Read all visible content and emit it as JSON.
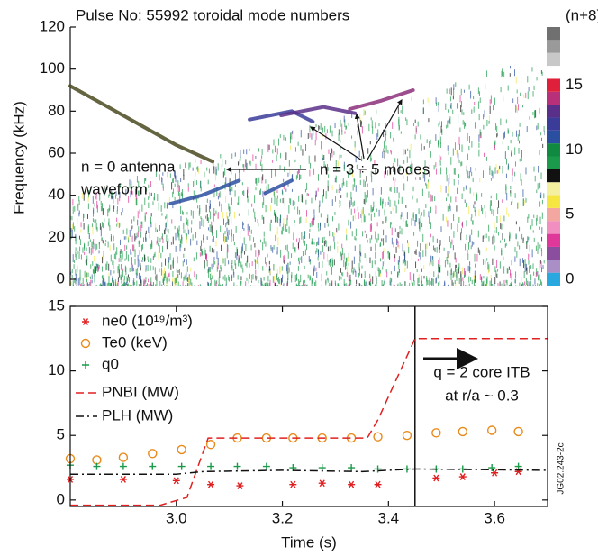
{
  "chart_data": [
    {
      "type": "spectrogram",
      "title": "Pulse No: 55992 toroidal mode numbers",
      "ylabel": "Frequency (kHz)",
      "xlim": [
        2.8,
        3.7
      ],
      "ylim": [
        -3,
        120
      ],
      "yticks": [
        0,
        20,
        40,
        60,
        80,
        100,
        120
      ],
      "colorbar": {
        "label": "(n+8)",
        "ticks": [
          0,
          5,
          10,
          15
        ],
        "colors": [
          "#29a8e0",
          "#a98fc6",
          "#8b4e9e",
          "#e0379a",
          "#f08fc0",
          "#f4a6a0",
          "#f5e642",
          "#f5f0a0",
          "#111111",
          "#1a9a4a",
          "#0f8a40",
          "#2a4fa0",
          "#3b3b9a",
          "#5a2f8a",
          "#b8307a",
          "#e0203a",
          "#ffffff",
          "#c8c8c8",
          "#9a9a9a",
          "#707070"
        ]
      },
      "traces": [
        {
          "color": "#4a4a20",
          "x": [
            2.8,
            2.9,
            3.0,
            3.07
          ],
          "y": [
            92,
            78,
            64,
            56
          ]
        },
        {
          "color": "#3b3b9a",
          "x": [
            3.14,
            3.18,
            3.22,
            3.26
          ],
          "y": [
            76,
            78,
            80,
            75
          ]
        },
        {
          "color": "#5a2f8a",
          "x": [
            3.2,
            3.28,
            3.34
          ],
          "y": [
            78,
            82,
            79
          ]
        },
        {
          "color": "#8b2f7a",
          "x": [
            3.33,
            3.39,
            3.45
          ],
          "y": [
            81,
            85,
            90
          ]
        },
        {
          "color": "#2a4fa0",
          "x": [
            2.99,
            3.05,
            3.12
          ],
          "y": [
            36,
            40,
            47
          ]
        },
        {
          "color": "#2a4fa0",
          "x": [
            3.17,
            3.22
          ],
          "y": [
            41,
            47
          ]
        }
      ],
      "annotations": [
        "n = 0 antenna",
        "waveform",
        "n = 3 ÷ 5 modes"
      ]
    },
    {
      "type": "line",
      "xlabel": "Time (s)",
      "xlim": [
        2.8,
        3.7
      ],
      "xticks": [
        {
          "value": 3,
          "label": "3.0"
        },
        3.2,
        3.4,
        3.6
      ],
      "ylim": [
        -0.5,
        15
      ],
      "yticks": [
        0,
        5,
        10,
        15
      ],
      "vline": 3.45,
      "annotations": [
        "q = 2 core ITB",
        "at r/a ~ 0.3"
      ],
      "note": "JG02.243-2c",
      "series": [
        {
          "name": "ne0 (10¹⁹/m³)",
          "color": "#e02020",
          "marker": "asterisk",
          "x": [
            2.8,
            2.9,
            3.0,
            3.065,
            3.12,
            3.22,
            3.275,
            3.33,
            3.38,
            3.49,
            3.54,
            3.6,
            3.645
          ],
          "values": [
            1.6,
            1.6,
            1.5,
            1.2,
            1.1,
            1.2,
            1.3,
            1.2,
            1.2,
            1.7,
            1.8,
            2.1,
            2.2
          ]
        },
        {
          "name": "Te0 (keV)",
          "color": "#e88a1a",
          "marker": "circle",
          "x": [
            2.8,
            2.85,
            2.9,
            2.955,
            3.01,
            3.065,
            3.115,
            3.17,
            3.22,
            3.275,
            3.33,
            3.38,
            3.435,
            3.49,
            3.54,
            3.595,
            3.645
          ],
          "values": [
            3.2,
            3.1,
            3.3,
            3.6,
            3.9,
            4.3,
            4.8,
            4.8,
            4.8,
            4.8,
            4.8,
            4.9,
            5.0,
            5.2,
            5.3,
            5.4,
            5.3
          ]
        },
        {
          "name": "q0",
          "color": "#1a9a4a",
          "marker": "plus",
          "x": [
            2.8,
            2.85,
            2.9,
            2.955,
            3.01,
            3.065,
            3.115,
            3.17,
            3.22,
            3.275,
            3.33,
            3.38,
            3.435,
            3.49,
            3.54,
            3.595,
            3.645
          ],
          "values": [
            2.7,
            2.6,
            2.6,
            2.6,
            2.6,
            2.6,
            2.6,
            2.6,
            2.5,
            2.5,
            2.5,
            2.4,
            2.4,
            2.4,
            2.4,
            2.5,
            2.6
          ]
        },
        {
          "name": "PNBI (MW)",
          "color": "#e02020",
          "dash": "dashed",
          "x": [
            2.8,
            2.97,
            3.02,
            3.06,
            3.36,
            3.38,
            3.45,
            3.7
          ],
          "values": [
            -0.4,
            -0.4,
            0.2,
            4.8,
            4.8,
            6.2,
            12.5,
            12.5
          ]
        },
        {
          "name": "PLH (MW)",
          "color": "#111111",
          "dash": "dashdot",
          "x": [
            2.8,
            2.95,
            3.0,
            3.05,
            3.2,
            3.35,
            3.45,
            3.7
          ],
          "values": [
            2.0,
            2.0,
            2.0,
            2.2,
            2.3,
            2.2,
            2.4,
            2.3
          ]
        }
      ]
    }
  ]
}
